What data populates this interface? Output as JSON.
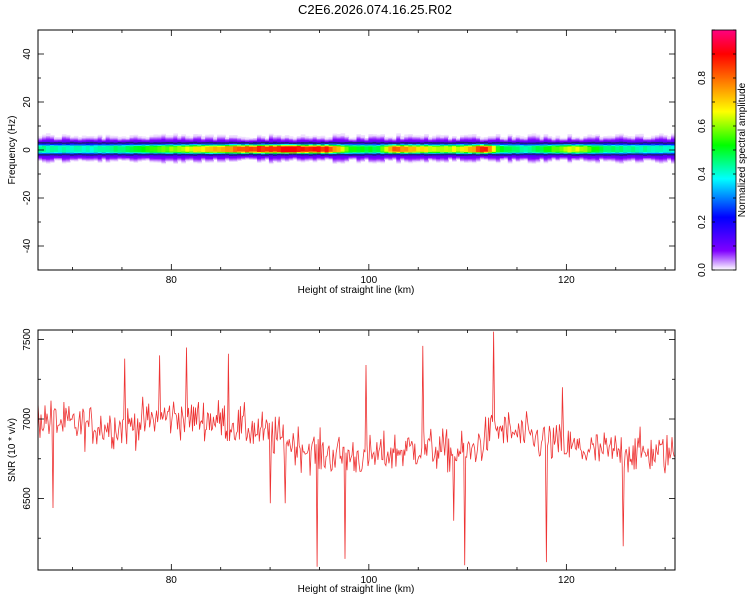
{
  "page_title": "C2E6.2026.074.16.25.R02",
  "colors": {
    "series_line": "#ee3333",
    "axes": "#000000",
    "background": "#ffffff"
  },
  "chart_data": [
    {
      "type": "heatmap",
      "xlabel": "Height of straight line (km)",
      "ylabel": "Frequency (Hz)",
      "xlim": [
        66.5,
        131
      ],
      "ylim": [
        -50,
        50
      ],
      "x_ticks": [
        80,
        100,
        120
      ],
      "x_tick_labels": [
        "80",
        "100",
        "120"
      ],
      "y_ticks": [
        -40,
        -20,
        0,
        20,
        40
      ],
      "y_tick_labels": [
        "-40",
        "-20",
        "0",
        "20",
        "40"
      ],
      "colorbar": {
        "label": "Normalized spectral amplitude",
        "range": [
          0.0,
          1.0
        ],
        "ticks": [
          0.0,
          0.2,
          0.4,
          0.6,
          0.8
        ],
        "tick_labels": [
          "0.0",
          "0.2",
          "0.4",
          "0.6",
          "0.8"
        ],
        "colormap": [
          "#ffffff",
          "#8000ff",
          "#0000ff",
          "#00ffff",
          "#00ff00",
          "#ffff00",
          "#ff8000",
          "#ff0000",
          "#ff0080"
        ]
      },
      "ridge": {
        "center_frequency_hz": 0.5,
        "half_width_hz": 2.5,
        "halo_half_width_hz": 5,
        "profile_km": [
          {
            "x": 66.5,
            "amp": 0.45
          },
          {
            "x": 72,
            "amp": 0.42
          },
          {
            "x": 78,
            "amp": 0.55
          },
          {
            "x": 82,
            "amp": 0.68
          },
          {
            "x": 86,
            "amp": 0.8
          },
          {
            "x": 88,
            "amp": 0.88
          },
          {
            "x": 92,
            "amp": 0.92
          },
          {
            "x": 96,
            "amp": 0.88
          },
          {
            "x": 98,
            "amp": 0.55
          },
          {
            "x": 101,
            "amp": 0.5
          },
          {
            "x": 102.5,
            "amp": 0.85
          },
          {
            "x": 104,
            "amp": 0.78
          },
          {
            "x": 107,
            "amp": 0.62
          },
          {
            "x": 110,
            "amp": 0.7
          },
          {
            "x": 111.8,
            "amp": 0.95
          },
          {
            "x": 113,
            "amp": 0.55
          },
          {
            "x": 116,
            "amp": 0.45
          },
          {
            "x": 121,
            "amp": 0.68
          },
          {
            "x": 124,
            "amp": 0.48
          },
          {
            "x": 131,
            "amp": 0.42
          }
        ]
      }
    },
    {
      "type": "line",
      "xlabel": "Height of straight line (km)",
      "ylabel": "SNR (10 * v/v)",
      "xlim": [
        66.5,
        131
      ],
      "ylim": [
        6050,
        7560
      ],
      "x_ticks": [
        80,
        100,
        120
      ],
      "x_tick_labels": [
        "80",
        "100",
        "120"
      ],
      "y_ticks": [
        6500,
        7000,
        7500
      ],
      "y_tick_labels": [
        "6500",
        "7000",
        "7500"
      ],
      "series": [
        {
          "points": 640,
          "trend_km": [
            [
              66.5,
              7010
            ],
            [
              70,
              6960
            ],
            [
              75,
              6950
            ],
            [
              80,
              7020
            ],
            [
              85,
              6990
            ],
            [
              90,
              6900
            ],
            [
              95,
              6780
            ],
            [
              100,
              6760
            ],
            [
              105,
              6820
            ],
            [
              110,
              6780
            ],
            [
              113,
              6940
            ],
            [
              117,
              6870
            ],
            [
              122,
              6800
            ],
            [
              127,
              6790
            ],
            [
              131,
              6780
            ]
          ],
          "noise_sd": 110,
          "spikes": [
            {
              "x": 68.0,
              "y": 6440
            },
            {
              "x": 75.3,
              "y": 7380
            },
            {
              "x": 78.8,
              "y": 7400
            },
            {
              "x": 81.5,
              "y": 7450
            },
            {
              "x": 85.8,
              "y": 7410
            },
            {
              "x": 90.0,
              "y": 6470
            },
            {
              "x": 91.5,
              "y": 6470
            },
            {
              "x": 94.8,
              "y": 6070
            },
            {
              "x": 97.6,
              "y": 6120
            },
            {
              "x": 99.7,
              "y": 7340
            },
            {
              "x": 105.5,
              "y": 7460
            },
            {
              "x": 108.6,
              "y": 6360
            },
            {
              "x": 109.7,
              "y": 6080
            },
            {
              "x": 112.6,
              "y": 7550
            },
            {
              "x": 118.0,
              "y": 6100
            },
            {
              "x": 119.6,
              "y": 7200
            },
            {
              "x": 125.8,
              "y": 6200
            }
          ]
        }
      ]
    }
  ]
}
